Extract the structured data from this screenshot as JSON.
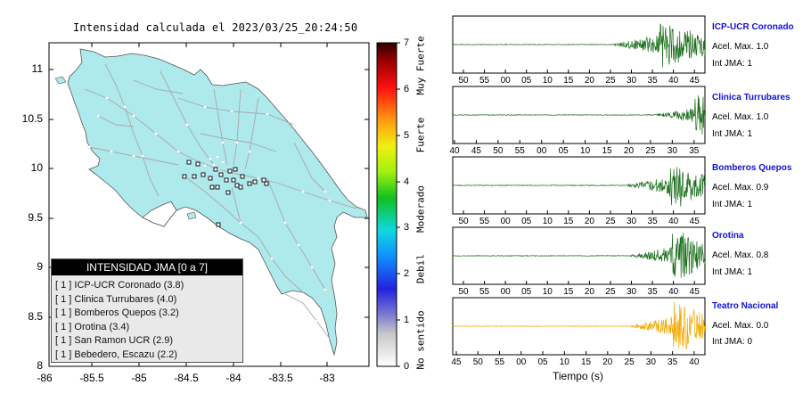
{
  "map": {
    "title": "Intensidad calculada el 2023/03/25_20:24:50",
    "y_ticks": [
      "11",
      "10.5",
      "10",
      "9.5",
      "9",
      "8.5",
      "8"
    ],
    "x_ticks": [
      "-86",
      "-85.5",
      "-85",
      "-84.5",
      "-84",
      "-83.5",
      "-83"
    ],
    "land_color": "#aee9ec",
    "road_color": "#a8a8a8"
  },
  "legend": {
    "title": "INTENSIDAD JMA [0 a 7]",
    "items": [
      "[ 1 ]  ICP-UCR Coronado (3.8)",
      "[ 1 ]  Clinica Turrubares (4.0)",
      "[ 1 ]  Bomberos Quepos (3.2)",
      "[ 1 ]  Orotina (3.4)",
      "[ 1 ]  San Ramon UCR (2.9)",
      "[ 1 ]  Bebedero, Escazu (2.2)"
    ]
  },
  "colorbar": {
    "labels": [
      "7",
      "6",
      "5",
      "4",
      "3",
      "2",
      "1",
      "0"
    ],
    "categories": [
      "Muy Fuerte",
      "Fuerte",
      "Moderado",
      "Debil",
      "No sentido"
    ]
  },
  "panels": [
    {
      "name": "ICP-UCR Coronado",
      "acc": "Acel. Max. 1.0",
      "int": "Int JMA: 1",
      "ticks": [
        "50",
        "55",
        "00",
        "05",
        "10",
        "15",
        "20",
        "25",
        "30",
        "35",
        "40",
        "45"
      ],
      "color": "#1a6e1a"
    },
    {
      "name": "Clinica Turrubares",
      "acc": "Acel. Max. 1.0",
      "int": "Int JMA: 1",
      "ticks": [
        "40",
        "45",
        "50",
        "55",
        "00",
        "05",
        "10",
        "15",
        "20",
        "25",
        "30",
        "35"
      ],
      "color": "#1a6e1a"
    },
    {
      "name": "Bomberos Quepos",
      "acc": "Acel. Max. 0.9",
      "int": "Int JMA: 1",
      "ticks": [
        "50",
        "55",
        "00",
        "05",
        "10",
        "15",
        "20",
        "25",
        "30",
        "35",
        "40",
        "45"
      ],
      "color": "#1a6e1a"
    },
    {
      "name": "Orotina",
      "acc": "Acel. Max. 0.8",
      "int": "Int JMA: 1",
      "ticks": [
        "50",
        "55",
        "00",
        "05",
        "10",
        "15",
        "20",
        "25",
        "30",
        "35",
        "40",
        "45"
      ],
      "color": "#1a6e1a"
    },
    {
      "name": "Teatro Nacional",
      "acc": "Acel. Max. 0.0",
      "int": "Int JMA: 0",
      "ticks": [
        "45",
        "50",
        "55",
        "00",
        "05",
        "10",
        "15",
        "20",
        "25",
        "30",
        "35",
        "40"
      ],
      "color": "#f5a800"
    }
  ],
  "time_label": "Tiempo (s)"
}
